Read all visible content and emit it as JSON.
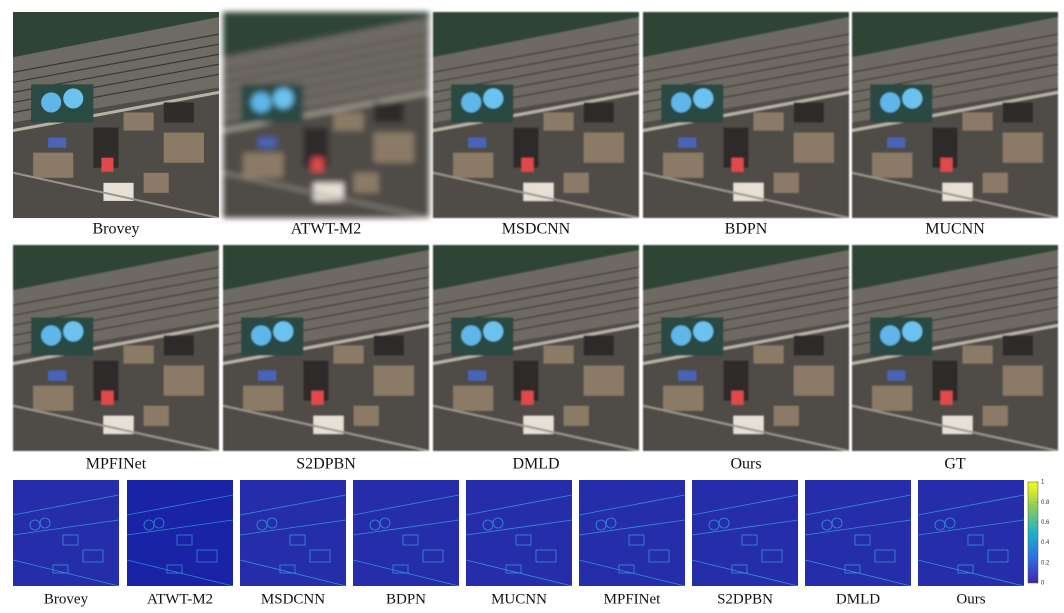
{
  "row1": {
    "labels": [
      "Brovey",
      "ATWT-M2",
      "MSDCNN",
      "BDPN",
      "MUCNN"
    ]
  },
  "row2": {
    "labels": [
      "MPFINet",
      "S2DPBN",
      "DMLD",
      "Ours",
      "GT"
    ]
  },
  "row3": {
    "labels": [
      "Brovey",
      "ATWT-M2",
      "MSDCNN",
      "BDPN",
      "MUCNN",
      "MPFINet",
      "S2DPBN",
      "DMLD",
      "Ours"
    ]
  },
  "colorbar": {
    "ticks": [
      0,
      0.2,
      0.4,
      0.6,
      0.8,
      1
    ]
  }
}
